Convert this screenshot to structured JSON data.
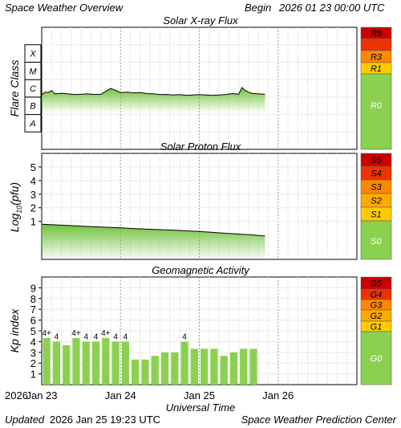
{
  "header": {
    "title": "Space Weather Overview",
    "begin_label": "Begin",
    "begin_value": "2026 01 23 00:00 UTC"
  },
  "footer": {
    "updated_label": "Updated",
    "updated_value": "2026 Jan 25 19:23 UTC",
    "credit": "Space Weather Prediction Center"
  },
  "xaxis": {
    "label": "Universal Time",
    "year": "2026",
    "range_hours": [
      0,
      96
    ],
    "ticks": [
      {
        "hour": 0,
        "label": "Jan 23"
      },
      {
        "hour": 24,
        "label": "Jan 24"
      },
      {
        "hour": 48,
        "label": "Jan 25"
      },
      {
        "hour": 72,
        "label": "Jan 26"
      }
    ]
  },
  "chart_data": [
    {
      "type": "line",
      "title": "Solar X-ray Flux",
      "ylabel": "Flare Class",
      "y_scale": "log",
      "ylim": [
        -9,
        -2
      ],
      "classes": [
        {
          "label": "A",
          "log_from": -8,
          "log_to": -7
        },
        {
          "label": "B",
          "log_from": -7,
          "log_to": -6
        },
        {
          "label": "C",
          "log_from": -6,
          "log_to": -5
        },
        {
          "label": "M",
          "log_from": -5,
          "log_to": -4
        },
        {
          "label": "X",
          "log_from": -4,
          "log_to": -3
        }
      ],
      "scale_levels": [
        {
          "label": "R5",
          "color": "#cc0000"
        },
        {
          "label": "R3",
          "color": "#ff8800"
        },
        {
          "label": "R1",
          "color": "#ffcc00"
        },
        {
          "label": "R0",
          "color": "#8cd050"
        }
      ],
      "series": {
        "x_hours": [
          0,
          1,
          2,
          3,
          4,
          6,
          8,
          10,
          12,
          14,
          16,
          18,
          20,
          21,
          22,
          23,
          24,
          26,
          28,
          30,
          32,
          34,
          36,
          38,
          40,
          42,
          44,
          46,
          48,
          50,
          52,
          54,
          56,
          58,
          60,
          61,
          62,
          63,
          64,
          66,
          68
        ],
        "log_flux": [
          -5.88,
          -5.72,
          -5.74,
          -5.62,
          -5.82,
          -5.78,
          -5.82,
          -5.86,
          -5.84,
          -5.82,
          -5.85,
          -5.84,
          -5.62,
          -5.5,
          -5.58,
          -5.66,
          -5.74,
          -5.72,
          -5.76,
          -5.74,
          -5.8,
          -5.82,
          -5.86,
          -5.85,
          -5.88,
          -5.86,
          -5.9,
          -5.88,
          -5.86,
          -5.88,
          -5.9,
          -5.88,
          -5.86,
          -5.8,
          -5.84,
          -5.46,
          -5.62,
          -5.72,
          -5.78,
          -5.82,
          -5.84
        ]
      }
    },
    {
      "type": "line",
      "title": "Solar Proton Flux",
      "ylabel_main": "Log",
      "ylabel_sub": "10",
      "ylabel_unit": "(pfu)",
      "ylim": [
        -1.8,
        6
      ],
      "yticks": [
        1,
        2,
        3,
        4,
        5
      ],
      "scale_levels": [
        {
          "label": "S5",
          "color": "#cc0000"
        },
        {
          "label": "S4",
          "color": "#ee3300"
        },
        {
          "label": "S3",
          "color": "#ff8800"
        },
        {
          "label": "S2",
          "color": "#ffaa00"
        },
        {
          "label": "S1",
          "color": "#ffcc00"
        },
        {
          "label": "S0",
          "color": "#8cd050"
        }
      ],
      "series": {
        "x_hours": [
          0,
          8,
          16,
          24,
          32,
          40,
          48,
          56,
          64,
          68
        ],
        "log_flux": [
          0.78,
          0.7,
          0.6,
          0.52,
          0.42,
          0.35,
          0.25,
          0.12,
          0.0,
          -0.08
        ]
      }
    },
    {
      "type": "bar",
      "title": "Geomagnetic Activity",
      "ylabel": "Kp index",
      "ylim": [
        0,
        10
      ],
      "yticks": [
        1,
        2,
        3,
        4,
        5,
        6,
        7,
        8,
        9
      ],
      "bar_width_hours": 3,
      "values": [
        4.33,
        4.0,
        3.67,
        4.33,
        4.0,
        4.0,
        4.33,
        4.0,
        4.0,
        2.33,
        2.33,
        2.67,
        3.0,
        3.0,
        4.0,
        3.33,
        3.33,
        3.33,
        2.67,
        3.0,
        3.33,
        3.33
      ],
      "bar_labels": [
        "4+",
        "4",
        "",
        "4+",
        "4",
        "4",
        "4+",
        "4",
        "4",
        "",
        "",
        "",
        "",
        "",
        "4",
        "",
        "",
        "",
        "",
        "",
        "",
        ""
      ],
      "scale_levels": [
        {
          "label": "G5",
          "color": "#cc0000"
        },
        {
          "label": "G4",
          "color": "#ee3300"
        },
        {
          "label": "G3",
          "color": "#ff8800"
        },
        {
          "label": "G2",
          "color": "#ffaa00"
        },
        {
          "label": "G1",
          "color": "#ffcc00"
        },
        {
          "label": "G0",
          "color": "#8cd050"
        }
      ]
    }
  ]
}
